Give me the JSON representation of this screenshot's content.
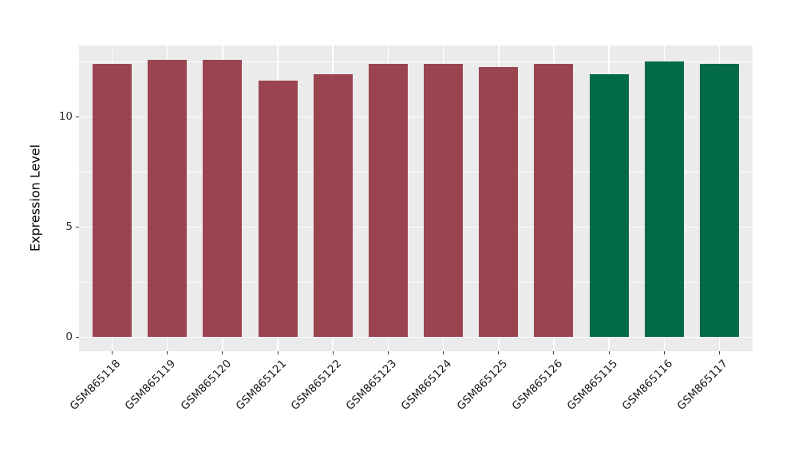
{
  "chart_data": {
    "type": "bar",
    "title": "",
    "xlabel": "",
    "ylabel": "Expression Level",
    "categories": [
      "GSM865118",
      "GSM865119",
      "GSM865120",
      "GSM865121",
      "GSM865122",
      "GSM865123",
      "GSM865124",
      "GSM865125",
      "GSM865126",
      "GSM865115",
      "GSM865116",
      "GSM865117"
    ],
    "values": [
      12.4,
      12.6,
      12.6,
      11.65,
      11.95,
      12.4,
      12.4,
      12.25,
      12.4,
      11.95,
      12.5,
      12.4
    ],
    "bar_colors": [
      "#9A4450",
      "#9A4450",
      "#9A4450",
      "#9A4450",
      "#9A4450",
      "#9A4450",
      "#9A4450",
      "#9A4450",
      "#9A4450",
      "#026A46",
      "#026A46",
      "#026A46"
    ],
    "group_colors": {
      "red_group": "#9A4450",
      "green_group": "#026A46"
    },
    "yticks": [
      0,
      5,
      10
    ],
    "yticks_minor": [
      2.5,
      7.5,
      12.5
    ],
    "ylim": [
      -0.64,
      13.25
    ],
    "x_tick_rotation_deg": 45,
    "grid": "on",
    "legend": "none",
    "panel_bg": "#EBEBEB",
    "grid_color": "#FFFFFF",
    "tick_label_color": "#333333"
  }
}
